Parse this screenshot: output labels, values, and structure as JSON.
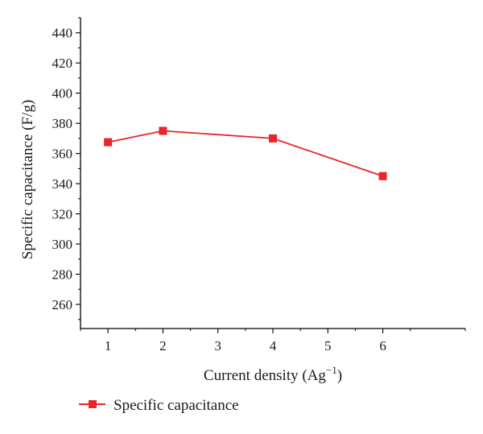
{
  "chart_data": {
    "type": "line",
    "title": "",
    "xlabel": "Current density (Ag",
    "xlabel_superscript": "−1",
    "xlabel_suffix": ")",
    "ylabel": "Specific capacitance (F/g)",
    "x_ticks": [
      "1",
      "2",
      "3",
      "4",
      "5",
      "6"
    ],
    "y_ticks": [
      "260",
      "280",
      "300",
      "320",
      "340",
      "360",
      "380",
      "400",
      "420",
      "440"
    ],
    "xlim": [
      0.5,
      7.5
    ],
    "ylim": [
      244,
      450
    ],
    "grid": false,
    "legend_position": "bottom-left",
    "series": [
      {
        "name": "Specific capacitance",
        "color": "#e8252a",
        "marker": "square",
        "x": [
          "1",
          "2",
          "4",
          "6"
        ],
        "x_positions": [
          1,
          2,
          4,
          6
        ],
        "y": [
          367.5,
          375,
          370,
          345
        ]
      }
    ]
  }
}
